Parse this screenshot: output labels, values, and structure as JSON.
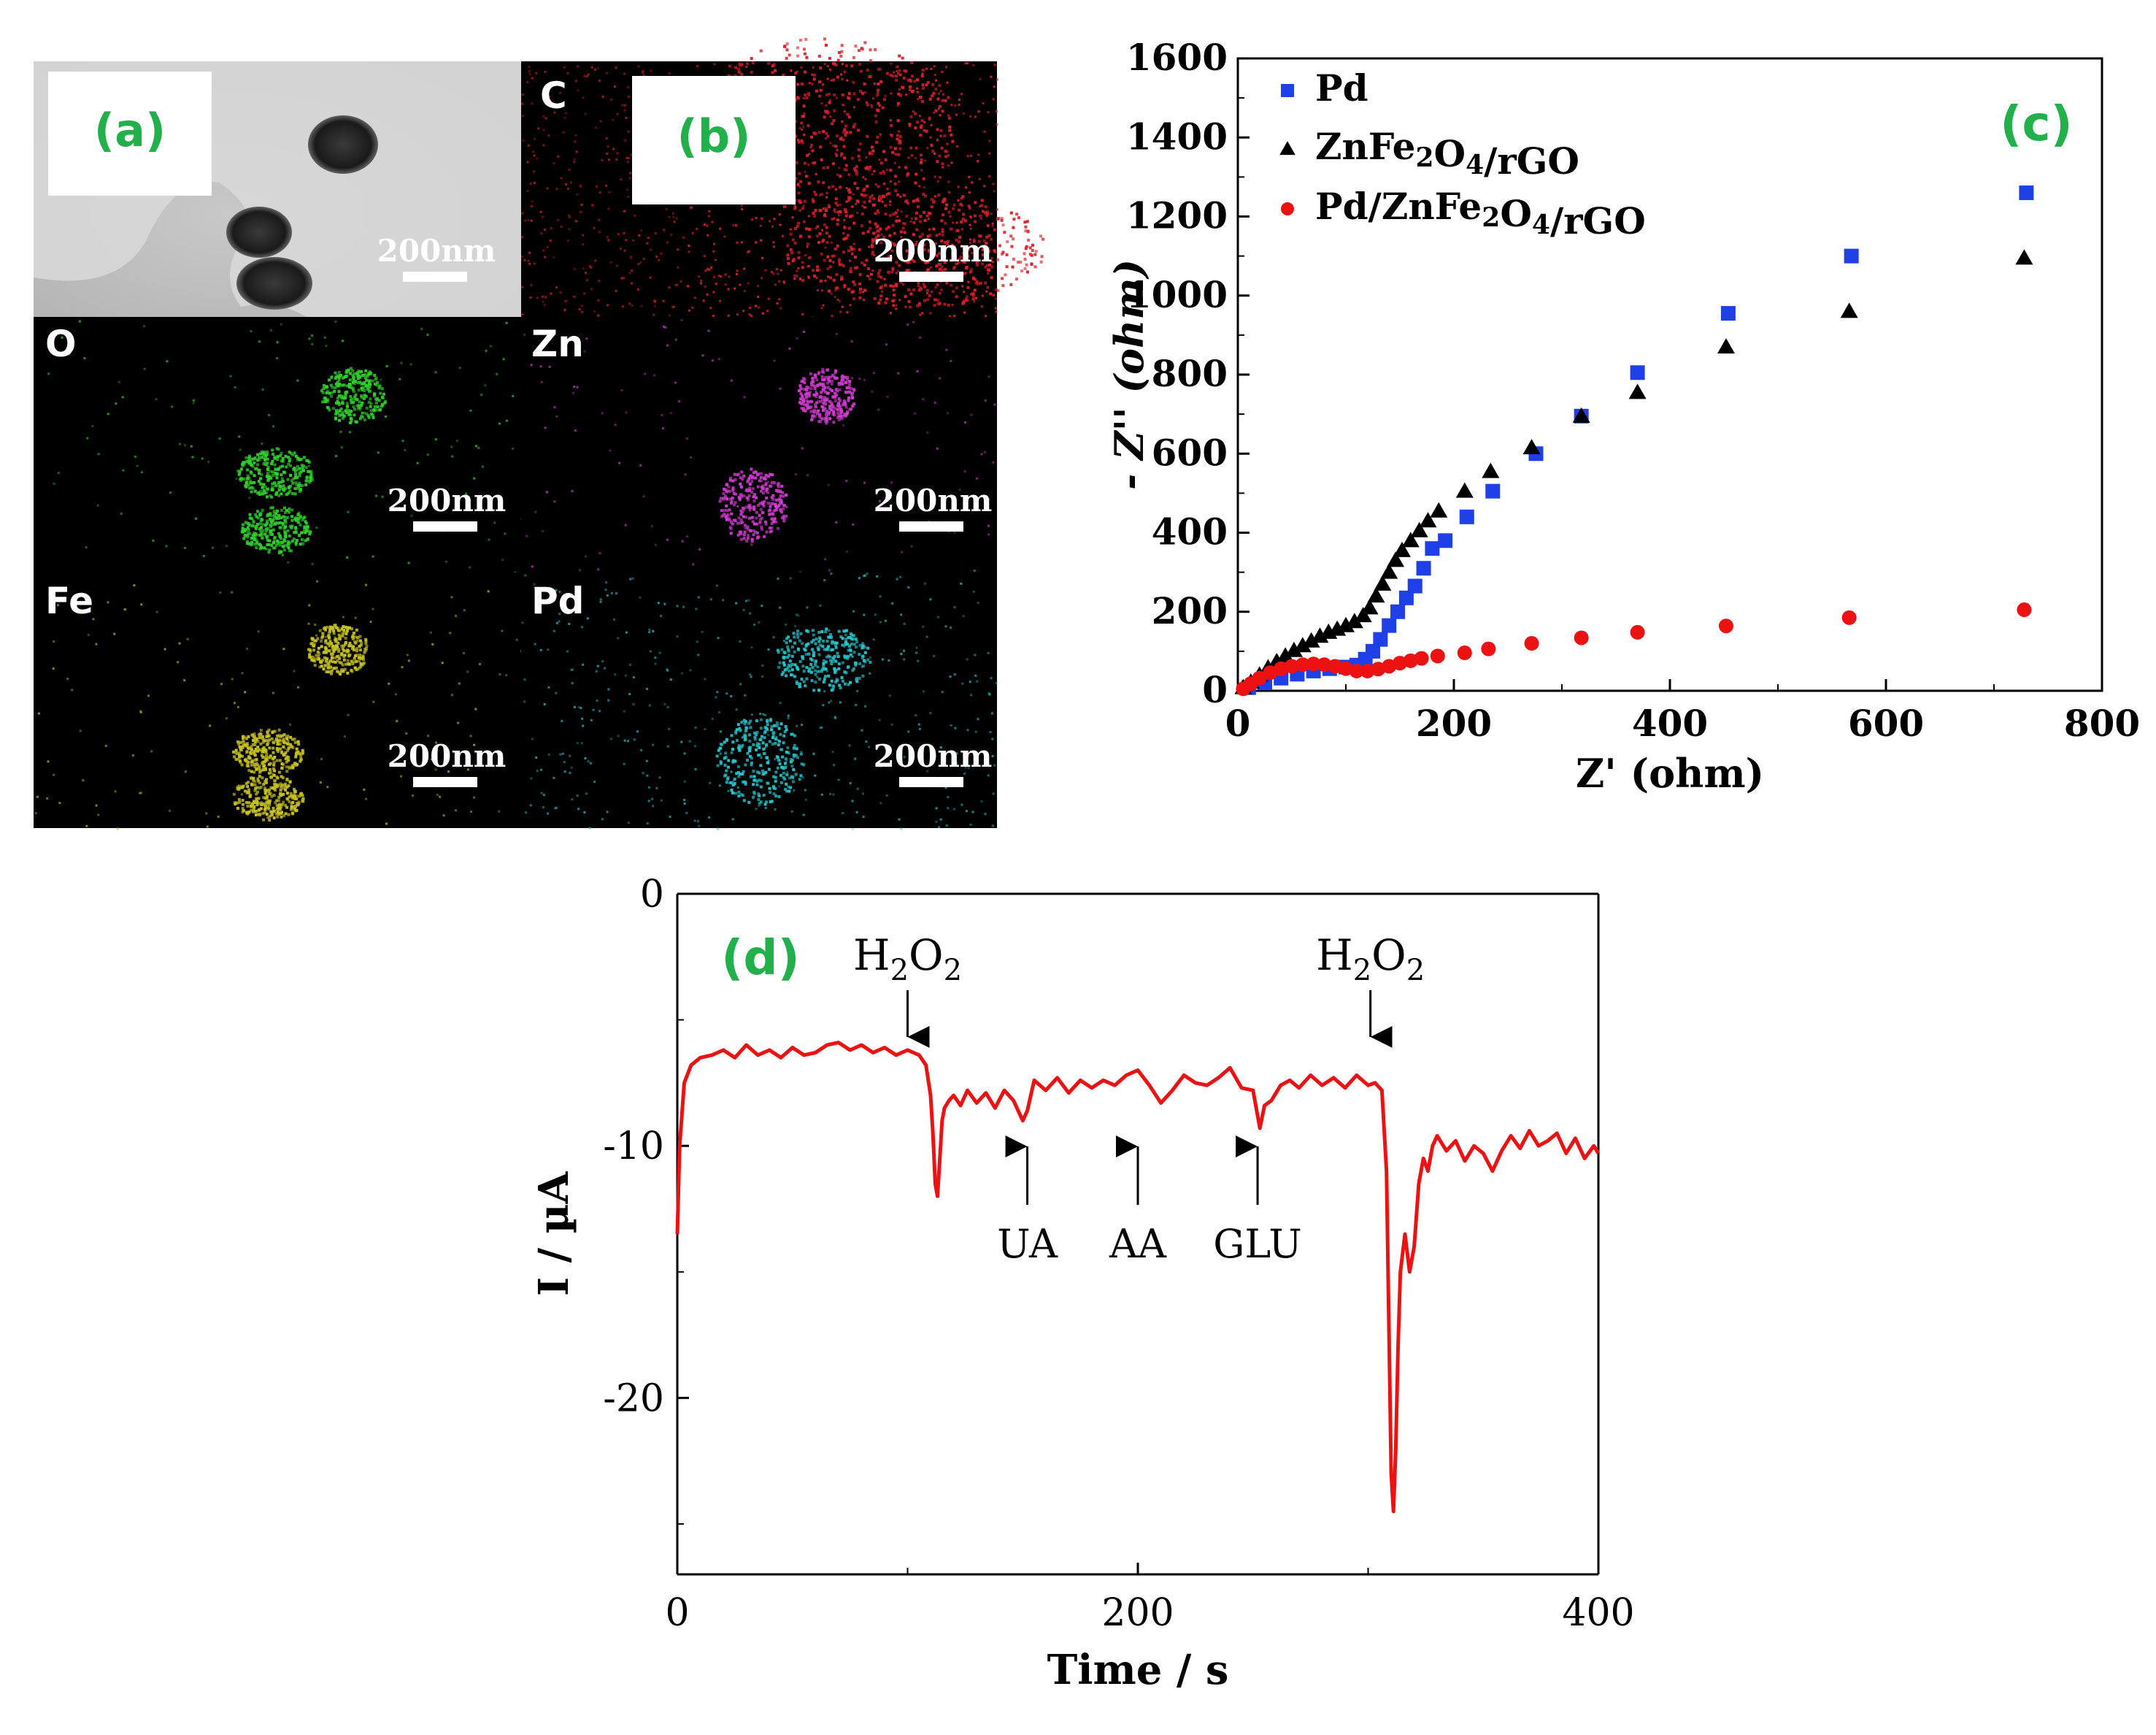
{
  "panels": {
    "a": {
      "label": "(a)",
      "scale_bar": "200nm"
    },
    "b": {
      "label": "(b)",
      "maps": [
        {
          "element": "C",
          "color": "#e0202a",
          "scale_bar": "200nm"
        },
        {
          "element": "O",
          "color": "#2fd12c",
          "scale_bar": "200nm"
        },
        {
          "element": "Zn",
          "color": "#d23ad2",
          "scale_bar": "200nm"
        },
        {
          "element": "Fe",
          "color": "#c8c21e",
          "scale_bar": "200nm"
        },
        {
          "element": "Pd",
          "color": "#27c6cf",
          "scale_bar": "200nm"
        }
      ]
    }
  },
  "chart_data": [
    {
      "id": "c",
      "panel_label": "(c)",
      "type": "scatter",
      "title": "",
      "xlabel": "Z' (ohm)",
      "ylabel": "- Z'' (ohm)",
      "xlim": [
        0,
        800
      ],
      "ylim": [
        0,
        1600
      ],
      "xticks": [
        0,
        200,
        400,
        600,
        800
      ],
      "yticks": [
        0,
        200,
        400,
        600,
        800,
        1000,
        1200,
        1400,
        1600
      ],
      "legend_position": "top-left",
      "series": [
        {
          "name": "Pd",
          "marker": "square",
          "color": "#1f3fe8",
          "points": [
            [
              10,
              8
            ],
            [
              25,
              20
            ],
            [
              40,
              32
            ],
            [
              55,
              42
            ],
            [
              70,
              50
            ],
            [
              85,
              56
            ],
            [
              100,
              60
            ],
            [
              110,
              65
            ],
            [
              118,
              80
            ],
            [
              125,
              100
            ],
            [
              132,
              130
            ],
            [
              140,
              165
            ],
            [
              148,
              200
            ],
            [
              156,
              235
            ],
            [
              164,
              265
            ],
            [
              172,
              310
            ],
            [
              180,
              360
            ],
            [
              192,
              380
            ],
            [
              212,
              440
            ],
            [
              236,
              505
            ],
            [
              276,
              600
            ],
            [
              318,
              695
            ],
            [
              370,
              805
            ],
            [
              454,
              955
            ],
            [
              568,
              1100
            ],
            [
              730,
              1260
            ]
          ]
        },
        {
          "name": "ZnFe2O4/rGO",
          "marker": "triangle",
          "color": "#000000",
          "points": [
            [
              5,
              8
            ],
            [
              12,
              22
            ],
            [
              20,
              40
            ],
            [
              28,
              58
            ],
            [
              36,
              74
            ],
            [
              44,
              88
            ],
            [
              52,
              102
            ],
            [
              60,
              114
            ],
            [
              68,
              126
            ],
            [
              76,
              138
            ],
            [
              84,
              148
            ],
            [
              92,
              156
            ],
            [
              100,
              165
            ],
            [
              108,
              175
            ],
            [
              116,
              190
            ],
            [
              122,
              210
            ],
            [
              128,
              240
            ],
            [
              134,
              270
            ],
            [
              140,
              300
            ],
            [
              146,
              330
            ],
            [
              152,
              355
            ],
            [
              160,
              380
            ],
            [
              168,
              405
            ],
            [
              176,
              430
            ],
            [
              186,
              455
            ],
            [
              210,
              505
            ],
            [
              234,
              555
            ],
            [
              272,
              615
            ],
            [
              318,
              695
            ],
            [
              370,
              755
            ],
            [
              452,
              870
            ],
            [
              566,
              960
            ],
            [
              728,
              1095
            ]
          ]
        },
        {
          "name": "Pd/ZnFe2O4/rGO",
          "marker": "circle",
          "color": "#ee1111",
          "points": [
            [
              5,
              5
            ],
            [
              12,
              18
            ],
            [
              20,
              32
            ],
            [
              30,
              46
            ],
            [
              40,
              56
            ],
            [
              50,
              62
            ],
            [
              60,
              66
            ],
            [
              70,
              68
            ],
            [
              80,
              66
            ],
            [
              90,
              62
            ],
            [
              100,
              56
            ],
            [
              110,
              50
            ],
            [
              120,
              50
            ],
            [
              130,
              55
            ],
            [
              140,
              62
            ],
            [
              150,
              70
            ],
            [
              160,
              76
            ],
            [
              170,
              82
            ],
            [
              185,
              88
            ],
            [
              210,
              96
            ],
            [
              232,
              106
            ],
            [
              272,
              120
            ],
            [
              318,
              134
            ],
            [
              370,
              148
            ],
            [
              452,
              164
            ],
            [
              566,
              185
            ],
            [
              728,
              205
            ]
          ]
        }
      ]
    },
    {
      "id": "d",
      "panel_label": "(d)",
      "type": "line",
      "title": "",
      "xlabel": "Time / s",
      "ylabel": "I / µA",
      "xlim": [
        0,
        400
      ],
      "ylim": [
        -27,
        0
      ],
      "xticks": [
        0,
        200,
        400
      ],
      "yticks": [
        0,
        -10,
        -20
      ],
      "series": [
        {
          "name": "current",
          "color": "#ee1111",
          "x": [
            0,
            1,
            3,
            6,
            10,
            15,
            20,
            25,
            30,
            35,
            40,
            45,
            50,
            55,
            60,
            65,
            70,
            75,
            80,
            85,
            90,
            95,
            100,
            105,
            108,
            110,
            111,
            112,
            113,
            114,
            115,
            116,
            118,
            120,
            123,
            126,
            130,
            134,
            138,
            142,
            146,
            150,
            152,
            155,
            160,
            165,
            170,
            175,
            180,
            185,
            190,
            195,
            200,
            205,
            210,
            215,
            220,
            225,
            230,
            235,
            240,
            245,
            250,
            253,
            255,
            258,
            262,
            266,
            270,
            275,
            280,
            285,
            290,
            295,
            300,
            303,
            306,
            308,
            309,
            310,
            311,
            312,
            313,
            314,
            316,
            318,
            320,
            322,
            324,
            326,
            328,
            330,
            334,
            338,
            342,
            346,
            350,
            354,
            358,
            362,
            366,
            370,
            374,
            378,
            382,
            386,
            390,
            394,
            398,
            400
          ],
          "y": [
            -13.5,
            -10,
            -7.5,
            -6.8,
            -6.5,
            -6.4,
            -6.2,
            -6.5,
            -6.0,
            -6.4,
            -6.2,
            -6.5,
            -6.1,
            -6.4,
            -6.3,
            -6.0,
            -5.9,
            -6.2,
            -6.0,
            -6.3,
            -6.1,
            -6.4,
            -6.2,
            -6.4,
            -6.8,
            -8.0,
            -9.5,
            -11.5,
            -12.0,
            -10.5,
            -9.0,
            -8.5,
            -8.2,
            -8.0,
            -8.4,
            -7.8,
            -8.3,
            -7.9,
            -8.5,
            -7.8,
            -8.2,
            -9.0,
            -8.6,
            -7.4,
            -7.8,
            -7.3,
            -7.9,
            -7.4,
            -7.7,
            -7.4,
            -7.6,
            -7.2,
            -7.0,
            -7.6,
            -8.3,
            -7.8,
            -7.2,
            -7.5,
            -7.6,
            -7.3,
            -6.9,
            -7.7,
            -7.8,
            -9.3,
            -8.4,
            -8.2,
            -7.6,
            -7.4,
            -7.7,
            -7.2,
            -7.6,
            -7.3,
            -7.7,
            -7.2,
            -7.6,
            -7.5,
            -7.8,
            -11.0,
            -17.0,
            -23.0,
            -24.5,
            -22.0,
            -18.0,
            -15.0,
            -13.5,
            -15.0,
            -14.0,
            -11.5,
            -10.5,
            -11.0,
            -10.0,
            -9.6,
            -10.2,
            -9.8,
            -10.6,
            -10.0,
            -10.3,
            -11.0,
            -10.2,
            -9.6,
            -10.1,
            -9.4,
            -10.0,
            -9.8,
            -9.5,
            -10.3,
            -9.7,
            -10.5,
            -10.0,
            -10.3
          ]
        }
      ],
      "annotations": [
        {
          "text_main": "H",
          "sub1": "2",
          "text_mid": "O",
          "sub2": "2",
          "x": 100,
          "direction": "down"
        },
        {
          "text_main": "UA",
          "x": 152,
          "direction": "up"
        },
        {
          "text_main": "AA",
          "x": 200,
          "direction": "up"
        },
        {
          "text_main": "GLU",
          "x": 252,
          "direction": "up"
        },
        {
          "text_main": "H",
          "sub1": "2",
          "text_mid": "O",
          "sub2": "2",
          "x": 301,
          "direction": "down"
        }
      ]
    }
  ]
}
